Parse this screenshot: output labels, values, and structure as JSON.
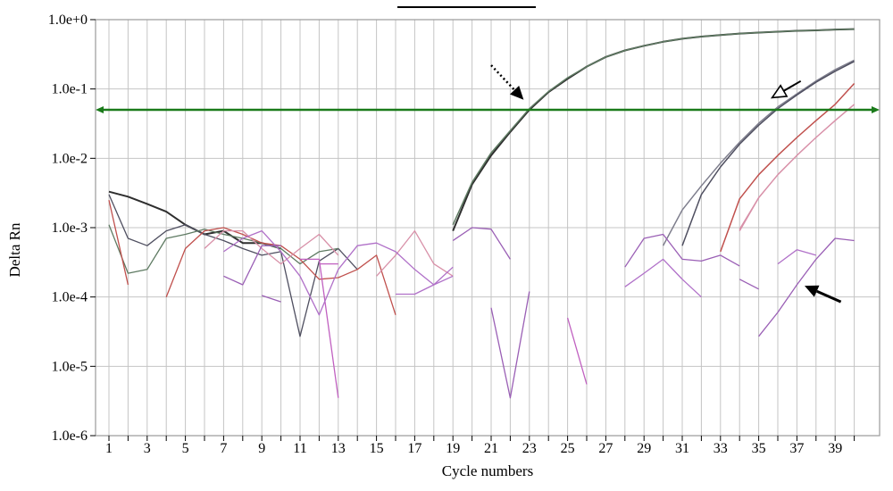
{
  "chart_data": {
    "type": "line",
    "xlabel": "Cycle numbers",
    "ylabel": "Delta Rn",
    "xlim": [
      0.5,
      40.5
    ],
    "ylim_log10": [
      -6,
      0
    ],
    "yscale": "log",
    "grid": true,
    "x_ticks": [
      1,
      3,
      5,
      7,
      9,
      11,
      13,
      15,
      17,
      19,
      21,
      23,
      25,
      27,
      29,
      31,
      33,
      35,
      37,
      39
    ],
    "y_ticks": [
      {
        "value": 1,
        "label": "1.0e+0"
      },
      {
        "value": 0.1,
        "label": "1.0e-1"
      },
      {
        "value": 0.01,
        "label": "1.0e-2"
      },
      {
        "value": 0.001,
        "label": "1.0e-3"
      },
      {
        "value": 0.0001,
        "label": "1.0e-4"
      },
      {
        "value": 1e-05,
        "label": "1.0e-5"
      },
      {
        "value": 1e-06,
        "label": "1.0e-6"
      }
    ],
    "threshold": 0.05,
    "colors": {
      "threshold": "#1a7a1a",
      "grid": "#c4c4c4",
      "frame": "#9a9a9a",
      "dark": "#2e2e2e",
      "gray_dark": "#4f4f60",
      "gray": "#7d7d8c",
      "green_gray": "#5e7a62",
      "red": "#c0504d",
      "pink": "#d890a8",
      "purple": "#9a5fb5",
      "violet": "#b070c8",
      "magenta": "#c060c0"
    },
    "series": [
      {
        "color": "dark",
        "width": 2,
        "points": [
          [
            1,
            0.0033
          ],
          [
            2,
            0.0028
          ],
          [
            3,
            0.0022
          ],
          [
            4,
            0.0017
          ],
          [
            5,
            0.0011
          ],
          [
            6,
            0.0008
          ],
          [
            7,
            0.0009
          ],
          [
            8,
            0.0006
          ],
          [
            9,
            0.0006
          ],
          [
            10,
            0.0005
          ]
        ]
      },
      {
        "color": "dark",
        "width": 2,
        "points": [
          [
            19,
            0.0009
          ],
          [
            20,
            0.0042
          ],
          [
            21,
            0.011
          ],
          [
            22,
            0.024
          ],
          [
            23,
            0.05
          ],
          [
            24,
            0.09
          ],
          [
            25,
            0.14
          ],
          [
            26,
            0.21
          ],
          [
            27,
            0.29
          ],
          [
            28,
            0.36
          ],
          [
            29,
            0.42
          ],
          [
            30,
            0.48
          ],
          [
            31,
            0.53
          ],
          [
            32,
            0.57
          ],
          [
            33,
            0.6
          ],
          [
            34,
            0.63
          ],
          [
            35,
            0.65
          ],
          [
            36,
            0.67
          ],
          [
            37,
            0.69
          ],
          [
            38,
            0.7
          ],
          [
            39,
            0.72
          ],
          [
            40,
            0.73
          ]
        ]
      },
      {
        "color": "green_gray",
        "width": 1.5,
        "points": [
          [
            19,
            0.0011
          ],
          [
            20,
            0.0045
          ],
          [
            21,
            0.012
          ],
          [
            22,
            0.025
          ],
          [
            23,
            0.052
          ],
          [
            24,
            0.092
          ],
          [
            25,
            0.145
          ],
          [
            26,
            0.21
          ],
          [
            27,
            0.29
          ],
          [
            28,
            0.36
          ],
          [
            29,
            0.42
          ],
          [
            30,
            0.48
          ],
          [
            31,
            0.53
          ],
          [
            32,
            0.57
          ],
          [
            33,
            0.6
          ],
          [
            34,
            0.63
          ],
          [
            35,
            0.65
          ],
          [
            36,
            0.67
          ],
          [
            37,
            0.69
          ],
          [
            38,
            0.7
          ],
          [
            39,
            0.72
          ],
          [
            40,
            0.73
          ]
        ]
      },
      {
        "color": "gray",
        "width": 1.5,
        "points": [
          [
            30,
            0.00055
          ],
          [
            31,
            0.0018
          ],
          [
            32,
            0.004
          ],
          [
            33,
            0.0085
          ],
          [
            34,
            0.017
          ],
          [
            35,
            0.032
          ],
          [
            36,
            0.055
          ],
          [
            37,
            0.085
          ],
          [
            38,
            0.13
          ],
          [
            39,
            0.19
          ],
          [
            40,
            0.26
          ]
        ]
      },
      {
        "color": "gray_dark",
        "width": 1.5,
        "points": [
          [
            31,
            0.00055
          ],
          [
            32,
            0.003
          ],
          [
            33,
            0.0075
          ],
          [
            34,
            0.016
          ],
          [
            35,
            0.03
          ],
          [
            36,
            0.052
          ],
          [
            37,
            0.082
          ],
          [
            38,
            0.125
          ],
          [
            39,
            0.18
          ],
          [
            40,
            0.25
          ]
        ]
      },
      {
        "color": "red",
        "width": 1.5,
        "points": [
          [
            33,
            0.00045
          ],
          [
            34,
            0.0026
          ],
          [
            35,
            0.0058
          ],
          [
            36,
            0.011
          ],
          [
            37,
            0.02
          ],
          [
            38,
            0.035
          ],
          [
            39,
            0.06
          ],
          [
            40,
            0.12
          ]
        ]
      },
      {
        "color": "pink",
        "width": 1.5,
        "points": [
          [
            34,
            0.0009
          ],
          [
            35,
            0.0027
          ],
          [
            36,
            0.0058
          ],
          [
            37,
            0.011
          ],
          [
            38,
            0.02
          ],
          [
            39,
            0.035
          ],
          [
            40,
            0.06
          ]
        ]
      },
      {
        "color": "gray_dark",
        "width": 1.3,
        "points": [
          [
            1,
            0.003
          ],
          [
            2,
            0.0007
          ],
          [
            3,
            0.00055
          ],
          [
            4,
            0.0009
          ],
          [
            5,
            0.0011
          ],
          [
            6,
            0.0008
          ],
          [
            7,
            0.00065
          ],
          [
            8,
            0.0005
          ],
          [
            9,
            0.0004
          ],
          [
            10,
            0.00045
          ],
          [
            11,
            2.7e-05
          ],
          [
            12,
            0.00033
          ],
          [
            13,
            0.0005
          ],
          [
            14,
            0.00025
          ]
        ]
      },
      {
        "color": "green_gray",
        "width": 1.3,
        "points": [
          [
            1,
            0.0011
          ],
          [
            2,
            0.00022
          ],
          [
            3,
            0.00025
          ],
          [
            4,
            0.0007
          ],
          [
            5,
            0.0008
          ],
          [
            6,
            0.00095
          ],
          [
            7,
            0.0008
          ],
          [
            8,
            0.0007
          ],
          [
            9,
            0.0006
          ],
          [
            10,
            0.0005
          ],
          [
            11,
            0.0003
          ],
          [
            12,
            0.00045
          ],
          [
            13,
            0.0005
          ]
        ]
      },
      {
        "color": "red",
        "width": 1.3,
        "points": [
          [
            1,
            0.0025
          ],
          [
            2,
            0.00015
          ]
        ]
      },
      {
        "color": "red",
        "width": 1.3,
        "points": [
          [
            4,
            0.0001
          ],
          [
            5,
            0.0005
          ],
          [
            6,
            0.0009
          ],
          [
            7,
            0.001
          ],
          [
            8,
            0.0008
          ],
          [
            9,
            0.0006
          ],
          [
            10,
            0.00055
          ],
          [
            11,
            0.00035
          ],
          [
            12,
            0.00018
          ],
          [
            13,
            0.00019
          ],
          [
            14,
            0.00025
          ],
          [
            15,
            0.0004
          ],
          [
            16,
            5.5e-05
          ]
        ]
      },
      {
        "color": "pink",
        "width": 1.3,
        "points": [
          [
            6,
            0.0005
          ],
          [
            7,
            0.0009
          ],
          [
            8,
            0.0009
          ],
          [
            9,
            0.0005
          ],
          [
            10,
            0.0003
          ],
          [
            11,
            0.0005
          ],
          [
            12,
            0.0008
          ],
          [
            13,
            0.0004
          ]
        ]
      },
      {
        "color": "pink",
        "width": 1.3,
        "points": [
          [
            15,
            0.0002
          ],
          [
            16,
            0.0004
          ],
          [
            17,
            0.0009
          ],
          [
            18,
            0.0003
          ],
          [
            19,
            0.0002
          ]
        ]
      },
      {
        "color": "pink",
        "width": 1.3,
        "points": [
          [
            34,
            0.00095
          ],
          [
            35,
            0.0027
          ]
        ]
      },
      {
        "color": "magenta",
        "width": 1.3,
        "points": [
          [
            11,
            0.00035
          ],
          [
            12,
            0.00035
          ],
          [
            13,
            3.5e-06
          ]
        ]
      },
      {
        "color": "magenta",
        "width": 1.3,
        "points": [
          [
            12,
            0.0003
          ],
          [
            13,
            0.0003
          ]
        ]
      },
      {
        "color": "violet",
        "width": 1.3,
        "points": [
          [
            7,
            0.00045
          ],
          [
            8,
            0.0007
          ],
          [
            9,
            0.0009
          ],
          [
            10,
            0.00045
          ],
          [
            11,
            0.0002
          ],
          [
            12,
            5.5e-05
          ],
          [
            13,
            0.00025
          ],
          [
            14,
            0.00055
          ],
          [
            15,
            0.0006
          ],
          [
            16,
            0.00045
          ],
          [
            17,
            0.00025
          ],
          [
            18,
            0.00015
          ],
          [
            19,
            0.0002
          ]
        ]
      },
      {
        "color": "violet",
        "width": 1.3,
        "points": [
          [
            16,
            0.00011
          ],
          [
            17,
            0.00011
          ],
          [
            18,
            0.00015
          ],
          [
            19,
            0.00027
          ]
        ]
      },
      {
        "color": "purple",
        "width": 1.3,
        "points": [
          [
            9,
            0.000105
          ],
          [
            10,
            8.5e-05
          ]
        ]
      },
      {
        "color": "purple",
        "width": 1.3,
        "points": [
          [
            7,
            0.0002
          ],
          [
            8,
            0.00015
          ],
          [
            9,
            0.00055
          ],
          [
            10,
            0.00055
          ]
        ]
      },
      {
        "color": "purple",
        "width": 1.3,
        "points": [
          [
            19,
            0.00065
          ],
          [
            20,
            0.001
          ],
          [
            21,
            0.00095
          ],
          [
            22,
            0.00035
          ]
        ]
      },
      {
        "color": "purple",
        "width": 1.3,
        "points": [
          [
            21,
            7e-05
          ],
          [
            22,
            3.5e-06
          ],
          [
            23,
            0.00012
          ]
        ]
      },
      {
        "color": "magenta",
        "width": 1.3,
        "points": [
          [
            25,
            5e-05
          ],
          [
            26,
            5.5e-06
          ]
        ]
      },
      {
        "color": "purple",
        "width": 1.3,
        "points": [
          [
            28,
            0.00027
          ],
          [
            29,
            0.0007
          ],
          [
            30,
            0.0008
          ],
          [
            31,
            0.00035
          ],
          [
            32,
            0.00033
          ],
          [
            33,
            0.0004
          ],
          [
            34,
            0.00028
          ]
        ]
      },
      {
        "color": "violet",
        "width": 1.3,
        "points": [
          [
            28,
            0.00014
          ],
          [
            29,
            0.00022
          ],
          [
            30,
            0.00035
          ],
          [
            31,
            0.00018
          ],
          [
            32,
            0.0001
          ]
        ]
      },
      {
        "color": "purple",
        "width": 1.3,
        "points": [
          [
            34,
            0.00018
          ],
          [
            35,
            0.00013
          ]
        ]
      },
      {
        "color": "purple",
        "width": 1.3,
        "points": [
          [
            35,
            2.7e-05
          ],
          [
            36,
            6e-05
          ],
          [
            37,
            0.00015
          ],
          [
            38,
            0.00035
          ],
          [
            39,
            0.0007
          ],
          [
            40,
            0.00065
          ]
        ]
      },
      {
        "color": "violet",
        "width": 1.3,
        "points": [
          [
            36,
            0.0003
          ],
          [
            37,
            0.00048
          ],
          [
            38,
            0.0004
          ]
        ]
      }
    ],
    "annotations": [
      {
        "type": "dotted-arrow",
        "from": [
          21.0,
          0.22
        ],
        "to": [
          22.7,
          0.07
        ]
      },
      {
        "type": "hollow-arrow",
        "from": [
          37.2,
          0.13
        ],
        "to": [
          35.7,
          0.075
        ]
      },
      {
        "type": "solid-arrow",
        "from": [
          39.3,
          8.5e-05
        ],
        "to": [
          37.4,
          0.000145
        ]
      }
    ]
  }
}
